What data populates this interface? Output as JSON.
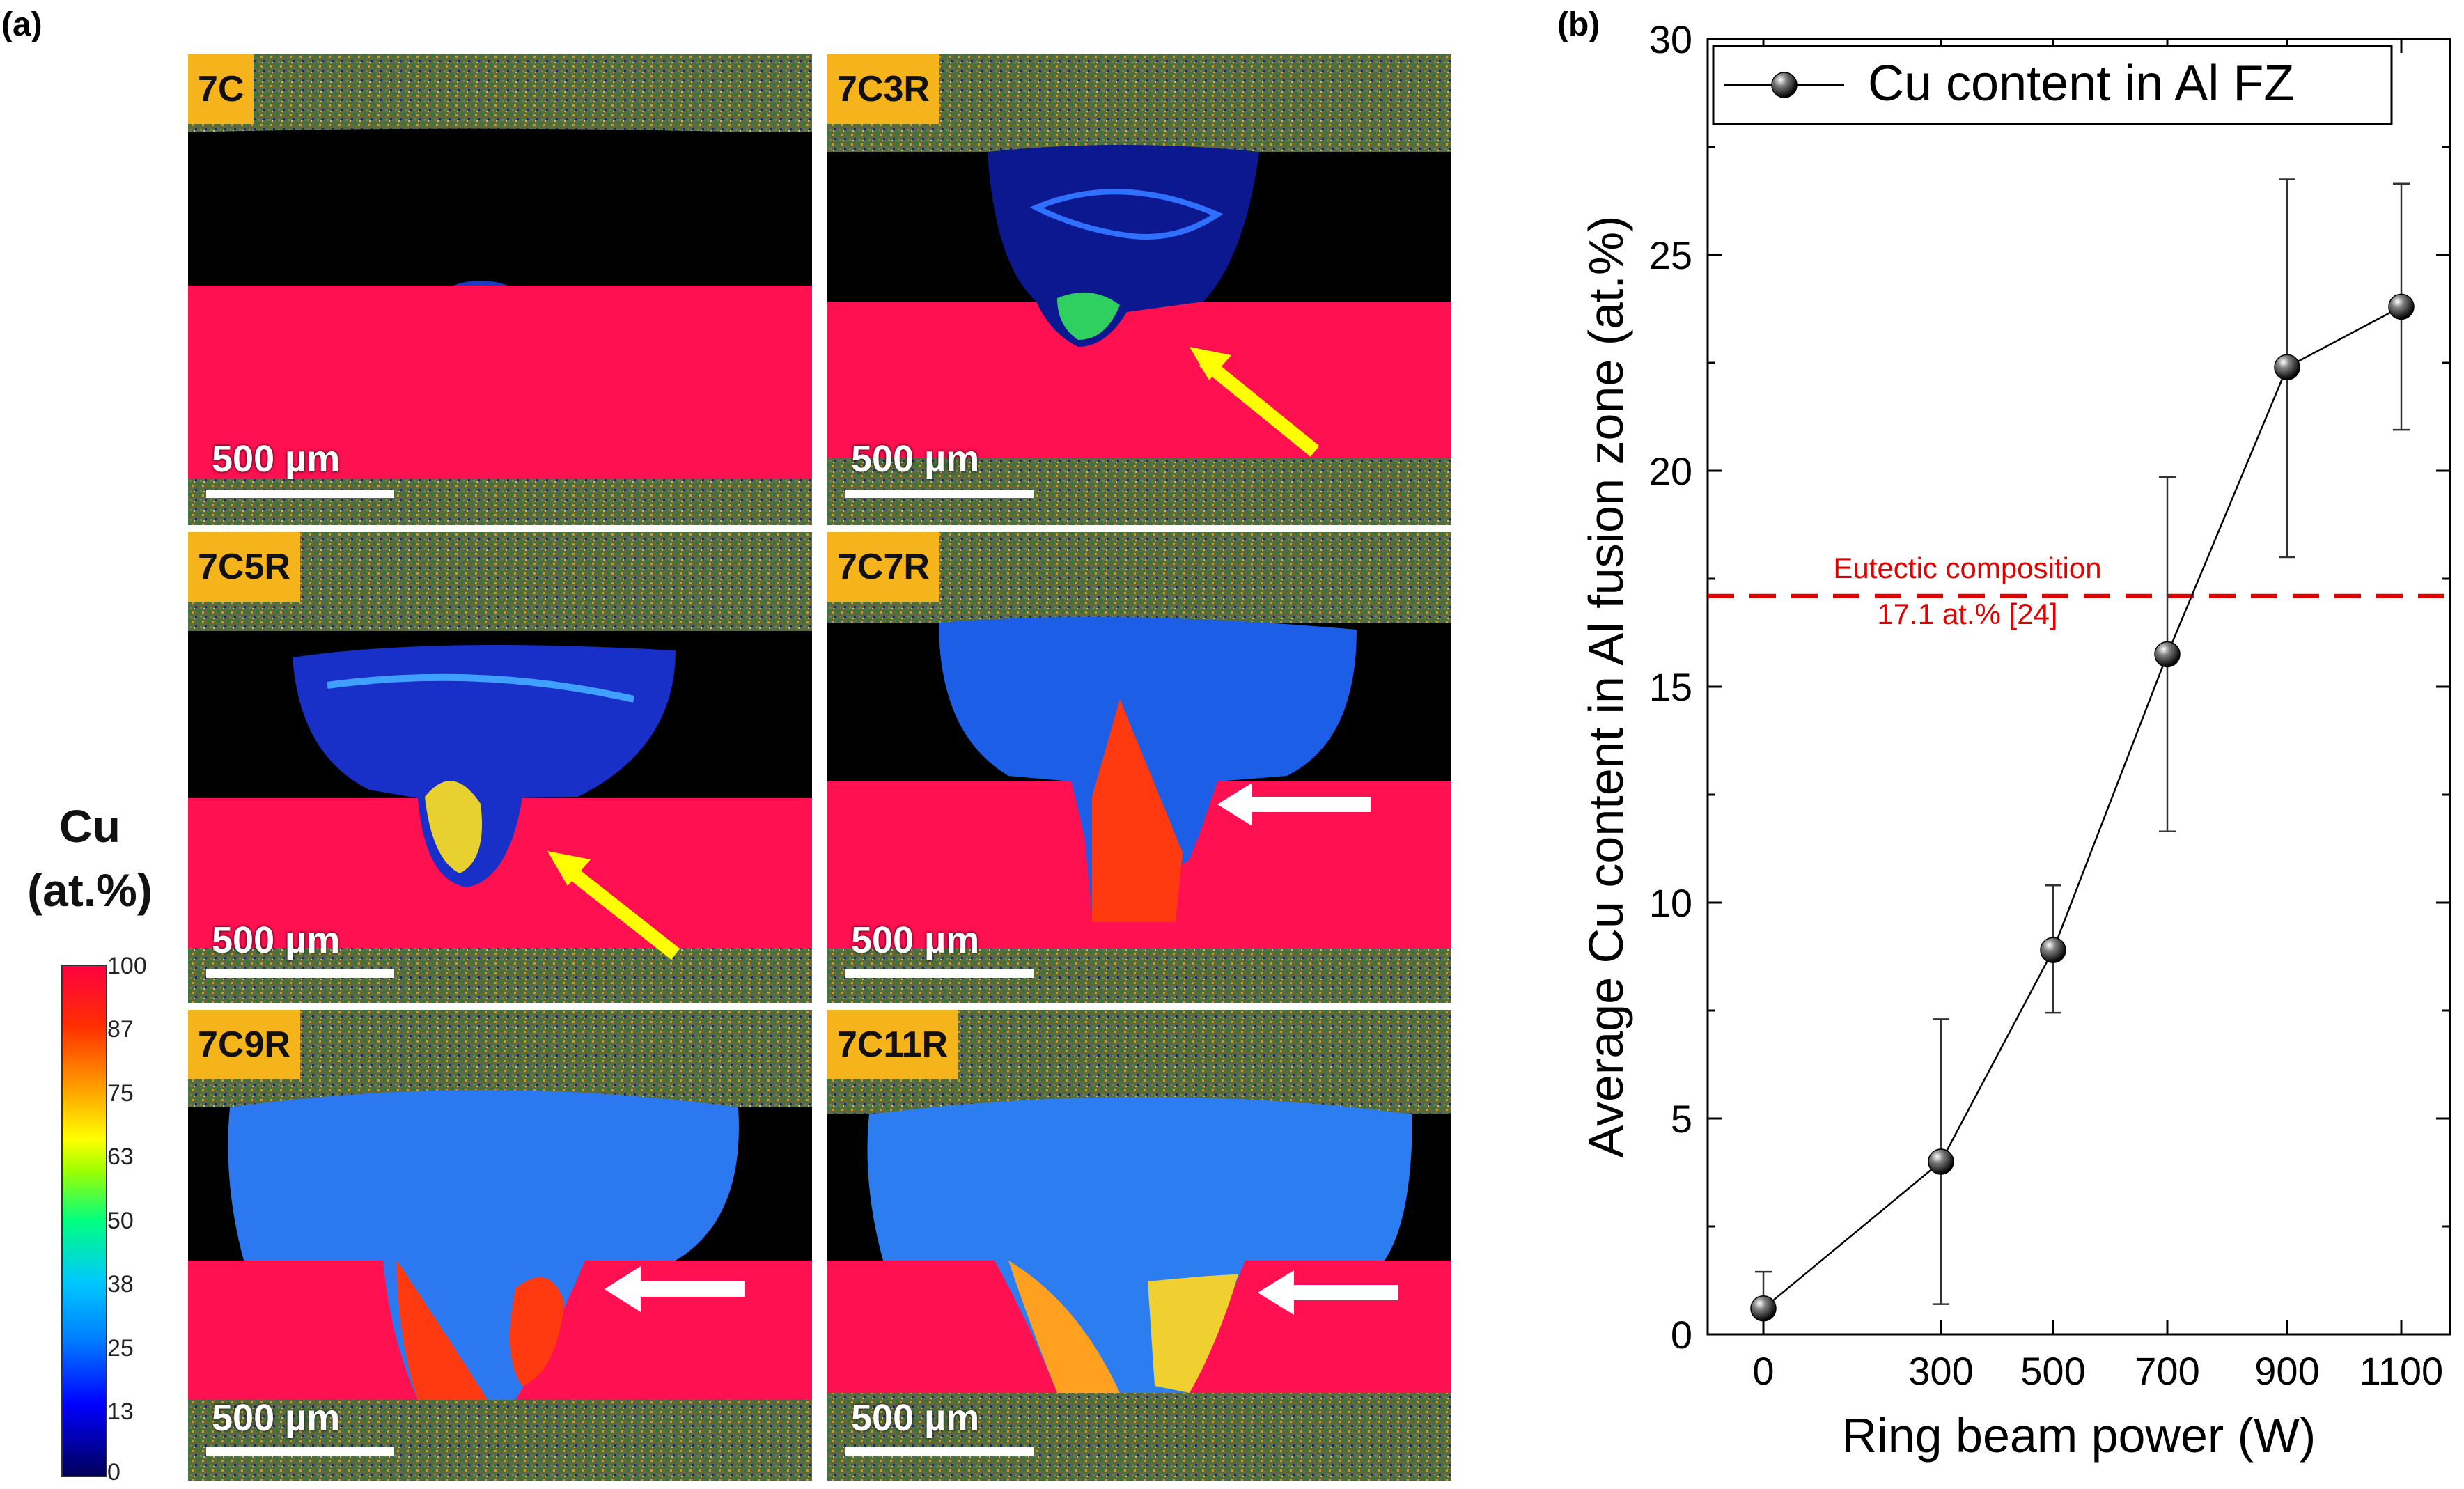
{
  "panel_a": {
    "label": "(a)",
    "tiles": [
      {
        "tag": "7C",
        "scale": "500 µm"
      },
      {
        "tag": "7C3R",
        "scale": "500 µm"
      },
      {
        "tag": "7C5R",
        "scale": "500 µm"
      },
      {
        "tag": "7C7R",
        "scale": "500 µm"
      },
      {
        "tag": "7C9R",
        "scale": "500 µm"
      },
      {
        "tag": "7C11R",
        "scale": "500 µm"
      }
    ],
    "colorbar": {
      "title_line1": "Cu",
      "title_line2": "(at.%)",
      "ticks": [
        "100",
        "87",
        "75",
        "63",
        "50",
        "38",
        "25",
        "13",
        "0"
      ]
    },
    "colors": {
      "cu_region": "#ff1050",
      "al_fill": "#1848e0",
      "tag_bg": "#f6b41c",
      "arrow_yellow": "#ffff00",
      "arrow_white": "#ffffff"
    }
  },
  "panel_b": {
    "label": "(b)"
  },
  "chart_data": {
    "type": "line",
    "xlabel": "Ring beam power (W)",
    "ylabel": "Average Cu content in Al fusion zone (at.%)",
    "x_tick_labels": [
      "0",
      "300",
      "500",
      "700",
      "900",
      "1100"
    ],
    "y_ticks": [
      0,
      5,
      10,
      15,
      20,
      25,
      30
    ],
    "ylim": [
      0,
      30
    ],
    "legend": {
      "position": "top-left",
      "label": "Cu content in Al FZ"
    },
    "series": [
      {
        "name": "Cu content in Al FZ",
        "x": [
          "0",
          "300",
          "500",
          "700",
          "900",
          "1100"
        ],
        "values": [
          0.6,
          4.0,
          8.9,
          15.75,
          22.4,
          23.8
        ],
        "err_low": [
          0.6,
          0.7,
          7.45,
          11.65,
          18.0,
          20.95
        ],
        "err_high": [
          1.45,
          7.3,
          10.4,
          19.85,
          26.75,
          26.65
        ]
      }
    ],
    "reference_line": {
      "y": 17.1,
      "label_line1": "Eutectic composition",
      "label_line2": "17.1 at.% [24]",
      "color": "#e00000"
    },
    "grid": false
  }
}
